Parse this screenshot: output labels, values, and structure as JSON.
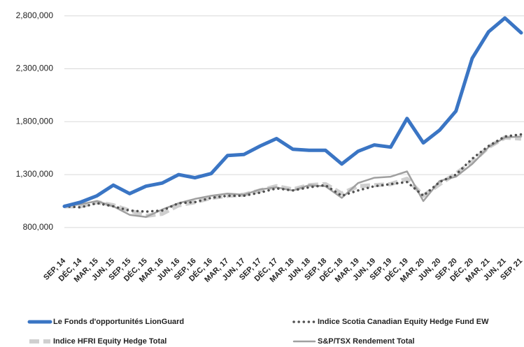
{
  "chart_data": {
    "type": "line",
    "categories": [
      "SEP, 14",
      "DÉC, 14",
      "MAR, 15",
      "JUN, 15",
      "SEP, 15",
      "DÉC, 15",
      "MAR, 16",
      "JUN, 16",
      "SEP, 16",
      "DÉC, 16",
      "MAR, 17",
      "JUN, 17",
      "SEP, 17",
      "DÉC, 17",
      "MAR, 18",
      "JUN, 18",
      "SEP, 18",
      "DÉC, 18",
      "MAR, 19",
      "JUN, 19",
      "SEP, 19",
      "DÉC, 19",
      "MAR, 20",
      "JUN, 20",
      "SEP, 20",
      "DÉC, 20",
      "MAR, 21",
      "JUN, 21",
      "SEP, 21"
    ],
    "series": [
      {
        "name": "Indice HFRI Equity Hedge Total",
        "color": "#cfcfcf",
        "style": "dashed",
        "values": [
          1000000,
          1000000,
          1040000,
          1010000,
          960000,
          910000,
          930000,
          1010000,
          1040000,
          1080000,
          1100000,
          1110000,
          1150000,
          1190000,
          1160000,
          1200000,
          1210000,
          1120000,
          1190000,
          1200000,
          1210000,
          1260000,
          1100000,
          1210000,
          1310000,
          1420000,
          1560000,
          1650000,
          1640000
        ]
      },
      {
        "name": "S&P/TSX Rendement Total",
        "color": "#a0a0a0",
        "style": "solid-thin",
        "values": [
          1000000,
          1020000,
          1050000,
          1000000,
          920000,
          900000,
          970000,
          1030000,
          1070000,
          1100000,
          1120000,
          1110000,
          1160000,
          1180000,
          1150000,
          1200000,
          1190000,
          1080000,
          1220000,
          1270000,
          1280000,
          1330000,
          1050000,
          1240000,
          1280000,
          1400000,
          1560000,
          1650000,
          1660000
        ]
      },
      {
        "name": "Indice Scotia Canadian Equity Hedge Fund EW",
        "color": "#505050",
        "style": "dotted",
        "values": [
          1000000,
          990000,
          1030000,
          1000000,
          960000,
          950000,
          960000,
          1030000,
          1040000,
          1080000,
          1100000,
          1100000,
          1130000,
          1170000,
          1150000,
          1180000,
          1200000,
          1100000,
          1150000,
          1190000,
          1210000,
          1230000,
          1100000,
          1230000,
          1300000,
          1450000,
          1570000,
          1660000,
          1680000
        ]
      },
      {
        "name": "Le Fonds d'opportunités LionGuard",
        "color": "#3a75c4",
        "style": "solid",
        "values": [
          1000000,
          1040000,
          1100000,
          1200000,
          1120000,
          1190000,
          1220000,
          1300000,
          1270000,
          1310000,
          1480000,
          1490000,
          1570000,
          1640000,
          1540000,
          1530000,
          1530000,
          1400000,
          1520000,
          1580000,
          1560000,
          1830000,
          1600000,
          1720000,
          1900000,
          2400000,
          2650000,
          2780000,
          2640000
        ]
      }
    ],
    "legend_order": [
      3,
      2,
      0,
      1
    ],
    "ylim": [
      700000,
      2950000
    ],
    "yticks": [
      {
        "value": 800000,
        "label": "800,000"
      },
      {
        "value": 1300000,
        "label": "1,300,000"
      },
      {
        "value": 1800000,
        "label": "1,800,000"
      },
      {
        "value": 2300000,
        "label": "2,300,000"
      },
      {
        "value": 2800000,
        "label": "2,800,000"
      }
    ],
    "grid": true
  }
}
